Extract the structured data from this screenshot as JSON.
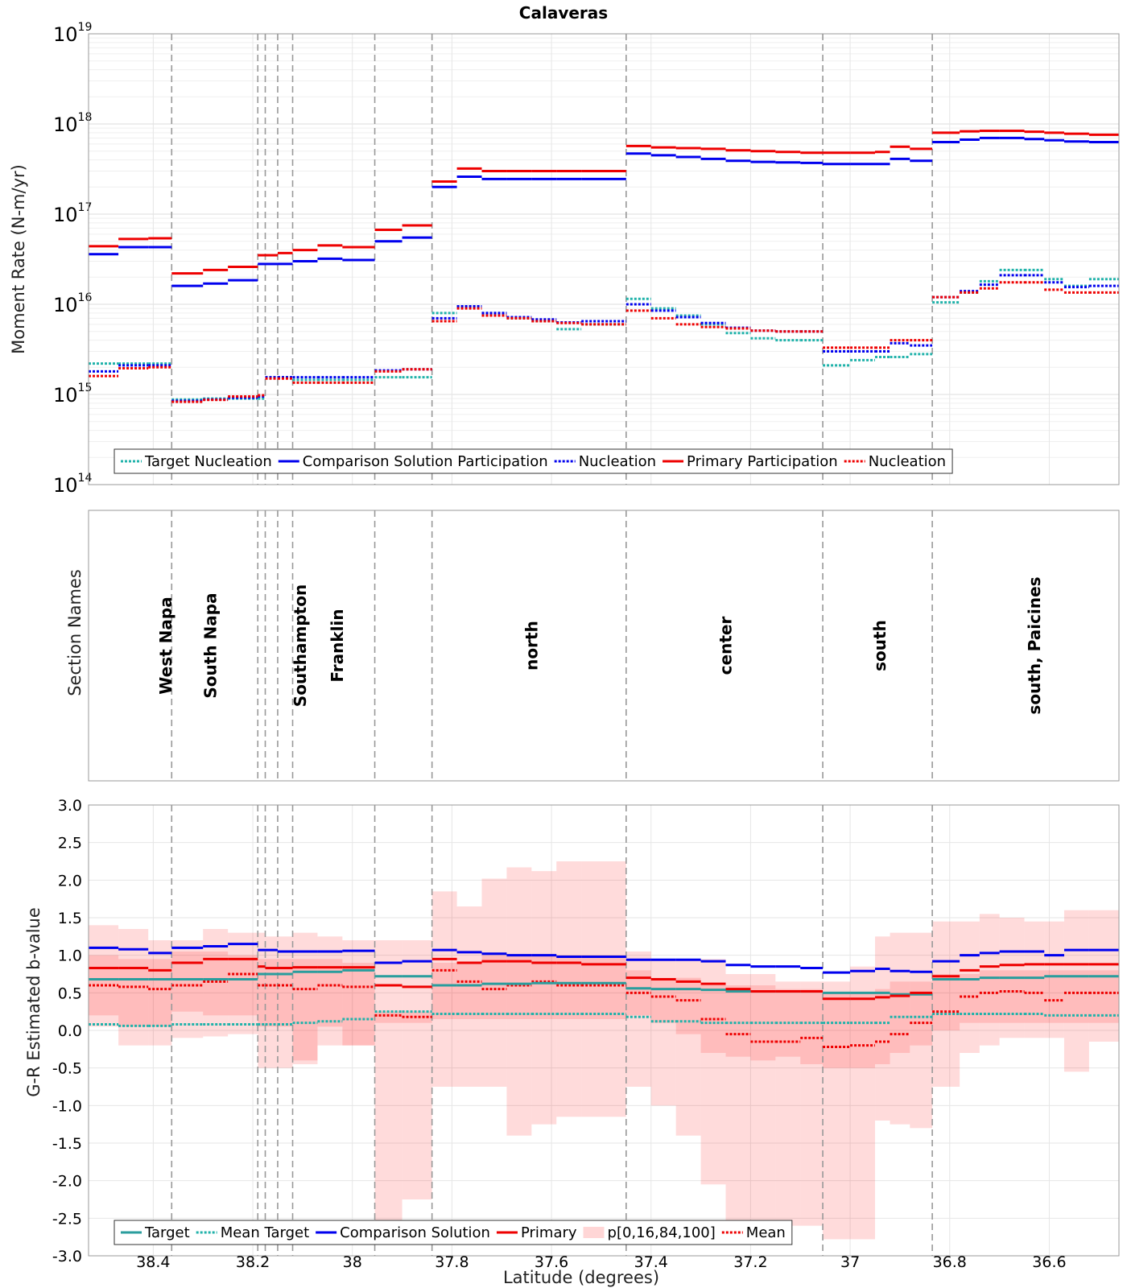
{
  "chart_data": {
    "title": "Calaveras",
    "xlabel": "Latitude (degrees)",
    "xlim": [
      38.53,
      36.46
    ],
    "x_ticks": [
      {
        "v": 38.4,
        "label": "38.4"
      },
      {
        "v": 38.2,
        "label": "38.2"
      },
      {
        "v": 38.0,
        "label": "38"
      },
      {
        "v": 37.8,
        "label": "37.8"
      },
      {
        "v": 37.6,
        "label": "37.6"
      },
      {
        "v": 37.4,
        "label": "37.4"
      },
      {
        "v": 37.2,
        "label": "37.2"
      },
      {
        "v": 37.0,
        "label": "37"
      },
      {
        "v": 36.8,
        "label": "36.8"
      },
      {
        "v": 36.6,
        "label": "36.6"
      }
    ],
    "section_boundaries": [
      38.363,
      38.19,
      38.175,
      38.15,
      38.12,
      37.955,
      37.84,
      37.45,
      37.055,
      36.835
    ],
    "segments": [
      38.53,
      38.47,
      38.41,
      38.363,
      38.3,
      38.25,
      38.19,
      38.175,
      38.15,
      38.12,
      38.07,
      38.02,
      37.955,
      37.9,
      37.84,
      37.79,
      37.74,
      37.69,
      37.64,
      37.59,
      37.54,
      37.45,
      37.4,
      37.35,
      37.3,
      37.25,
      37.2,
      37.15,
      37.1,
      37.055,
      37.0,
      36.95,
      36.92,
      36.88,
      36.835,
      36.78,
      36.74,
      36.7,
      36.65,
      36.61,
      36.57,
      36.52,
      36.46
    ],
    "moment_panel": {
      "type": "line",
      "scale": "log",
      "ylabel": "Moment Rate (N-m/yr)",
      "y_exp_range": [
        14,
        19
      ],
      "y_tick_base": "10",
      "y_tick_exps": [
        "14",
        "15",
        "16",
        "17",
        "18",
        "19"
      ],
      "legend": [
        {
          "label": "Target Nucleation",
          "color": "#20B2AA",
          "dash": "3,2"
        },
        {
          "label": "Comparison Solution Participation",
          "color": "#0000EE",
          "dash": ""
        },
        {
          "label": "Nucleation",
          "color": "#0000EE",
          "dash": "3,2"
        },
        {
          "label": "Primary Participation",
          "color": "#EE0000",
          "dash": ""
        },
        {
          "label": "Nucleation",
          "color": "#EE0000",
          "dash": "3,2"
        }
      ],
      "series": [
        {
          "name": "Target Nucleation",
          "color": "#20B2AA",
          "dash": "3,2",
          "values": [
            2200000000000000.0,
            2200000000000000.0,
            2200000000000000.0,
            880000000000000.0,
            900000000000000.0,
            900000000000000.0,
            900000000000000.0,
            1550000000000000.0,
            1550000000000000.0,
            1450000000000000.0,
            1450000000000000.0,
            1450000000000000.0,
            1550000000000000.0,
            1550000000000000.0,
            8000000000000000.0,
            9500000000000000.0,
            8000000000000000.0,
            7000000000000000.0,
            6500000000000000.0,
            5300000000000000.0,
            6000000000000000.0,
            1.15e+16,
            9000000000000000.0,
            7500000000000000.0,
            6000000000000000.0,
            4800000000000000.0,
            4200000000000000.0,
            4000000000000000.0,
            4000000000000000.0,
            2100000000000000.0,
            2400000000000000.0,
            2600000000000000.0,
            2600000000000000.0,
            2800000000000000.0,
            1.05e+16,
            1.35e+16,
            1.8e+16,
            2.4e+16,
            2.4e+16,
            1.9e+16,
            1.6e+16,
            1.9e+16
          ]
        },
        {
          "name": "Comparison Solution Participation",
          "color": "#0000EE",
          "dash": "",
          "values": [
            3.6e+16,
            4.3e+16,
            4.3e+16,
            1.6e+16,
            1.7e+16,
            1.85e+16,
            2.8e+16,
            2.8e+16,
            2.8e+16,
            3e+16,
            3.2e+16,
            3.1e+16,
            5e+16,
            5.5e+16,
            2e+17,
            2.6e+17,
            2.45e+17,
            2.45e+17,
            2.45e+17,
            2.45e+17,
            2.45e+17,
            4.7e+17,
            4.5e+17,
            4.3e+17,
            4.1e+17,
            3.9e+17,
            3.8e+17,
            3.75e+17,
            3.7e+17,
            3.6e+17,
            3.6e+17,
            3.6e+17,
            4.1e+17,
            3.9e+17,
            6.3e+17,
            6.7e+17,
            7e+17,
            7e+17,
            6.8e+17,
            6.6e+17,
            6.4e+17,
            6.3e+17
          ]
        },
        {
          "name": "Comparison Solution Nucleation",
          "color": "#0000EE",
          "dash": "3,2",
          "values": [
            1800000000000000.0,
            2100000000000000.0,
            2100000000000000.0,
            850000000000000.0,
            880000000000000.0,
            920000000000000.0,
            950000000000000.0,
            1550000000000000.0,
            1550000000000000.0,
            1550000000000000.0,
            1550000000000000.0,
            1550000000000000.0,
            1850000000000000.0,
            1900000000000000.0,
            7000000000000000.0,
            9500000000000000.0,
            8000000000000000.0,
            7200000000000000.0,
            6800000000000000.0,
            6300000000000000.0,
            6500000000000000.0,
            1e+16,
            8500000000000000.0,
            7200000000000000.0,
            6200000000000000.0,
            5500000000000000.0,
            5100000000000000.0,
            5000000000000000.0,
            5000000000000000.0,
            3000000000000000.0,
            3000000000000000.0,
            3000000000000000.0,
            3700000000000000.0,
            3500000000000000.0,
            1.2e+16,
            1.4e+16,
            1.65e+16,
            2.1e+16,
            2.1e+16,
            1.75e+16,
            1.55e+16,
            1.6e+16
          ]
        },
        {
          "name": "Primary Participation",
          "color": "#EE0000",
          "dash": "",
          "values": [
            4.4e+16,
            5.3e+16,
            5.4e+16,
            2.2e+16,
            2.4e+16,
            2.6e+16,
            3.5e+16,
            3.5e+16,
            3.7e+16,
            4e+16,
            4.5e+16,
            4.3e+16,
            6.7e+16,
            7.5e+16,
            2.3e+17,
            3.2e+17,
            3e+17,
            3e+17,
            3e+17,
            3e+17,
            3e+17,
            5.7e+17,
            5.5e+17,
            5.4e+17,
            5.3e+17,
            5.1e+17,
            5e+17,
            4.9e+17,
            4.8e+17,
            4.8e+17,
            4.8e+17,
            4.9e+17,
            5.6e+17,
            5.3e+17,
            8e+17,
            8.3e+17,
            8.4e+17,
            8.4e+17,
            8.2e+17,
            8e+17,
            7.8e+17,
            7.6e+17
          ]
        },
        {
          "name": "Primary Nucleation",
          "color": "#EE0000",
          "dash": "3,2",
          "values": [
            1600000000000000.0,
            1950000000000000.0,
            2000000000000000.0,
            830000000000000.0,
            870000000000000.0,
            950000000000000.0,
            980000000000000.0,
            1500000000000000.0,
            1500000000000000.0,
            1350000000000000.0,
            1350000000000000.0,
            1350000000000000.0,
            1800000000000000.0,
            1900000000000000.0,
            6500000000000000.0,
            9000000000000000.0,
            7500000000000000.0,
            7000000000000000.0,
            6500000000000000.0,
            6200000000000000.0,
            6000000000000000.0,
            8500000000000000.0,
            7000000000000000.0,
            6000000000000000.0,
            5600000000000000.0,
            5400000000000000.0,
            5100000000000000.0,
            5000000000000000.0,
            5000000000000000.0,
            3300000000000000.0,
            3300000000000000.0,
            3300000000000000.0,
            4000000000000000.0,
            4000000000000000.0,
            1.2e+16,
            1.35e+16,
            1.5e+16,
            1.75e+16,
            1.75e+16,
            1.45e+16,
            1.35e+16,
            1.35e+16
          ]
        }
      ]
    },
    "names_panel": {
      "ylabel": "Section Names",
      "labels": [
        {
          "text": "West Napa",
          "lat": 38.375
        },
        {
          "text": "South Napa",
          "lat": 38.285
        },
        {
          "text": "Southampton",
          "lat": 38.105
        },
        {
          "text": "Franklin",
          "lat": 38.03
        },
        {
          "text": "north",
          "lat": 37.64
        },
        {
          "text": "center",
          "lat": 37.25
        },
        {
          "text": "south",
          "lat": 36.94
        },
        {
          "text": "south, Paicines",
          "lat": 36.63
        }
      ]
    },
    "bvalue_panel": {
      "type": "line",
      "ylabel": "G-R Estimated b-value",
      "ylim": [
        -3.0,
        3.0
      ],
      "y_ticks": [
        "3.0",
        "2.5",
        "2.0",
        "1.5",
        "1.0",
        "0.5",
        "0.0",
        "-0.5",
        "-1.0",
        "-1.5",
        "-2.0",
        "-2.5",
        "-3.0"
      ],
      "legend": [
        {
          "label": "Target",
          "color": "#2A9D9D",
          "dash": "",
          "kind": "line"
        },
        {
          "label": "Mean Target",
          "color": "#20B2AA",
          "dash": "3,2",
          "kind": "line"
        },
        {
          "label": "Comparison Solution",
          "color": "#0000EE",
          "dash": "",
          "kind": "line"
        },
        {
          "label": "Primary",
          "color": "#EE0000",
          "dash": "",
          "kind": "line"
        },
        {
          "label": "p[0,16,84,100]",
          "color": "#FFD6D6",
          "dash": "",
          "kind": "box"
        },
        {
          "label": "Mean",
          "color": "#EE0000",
          "dash": "3,2",
          "kind": "line"
        }
      ],
      "band_p0": [
        0.05,
        -0.2,
        -0.2,
        -0.1,
        -0.08,
        -0.05,
        -0.5,
        -0.5,
        -0.5,
        -0.4,
        -0.2,
        -0.2,
        -2.55,
        -2.25,
        -0.75,
        -0.75,
        -0.75,
        -1.4,
        -1.25,
        -1.15,
        -1.15,
        -0.75,
        -1.0,
        -1.4,
        -2.05,
        -2.6,
        -2.6,
        -2.6,
        -2.6,
        -2.78,
        -2.78,
        -1.2,
        -1.25,
        -1.3,
        -0.75,
        -0.3,
        -0.2,
        -0.1,
        -0.1,
        -0.1,
        -0.55,
        -0.15
      ],
      "band_p16": [
        0.2,
        0.05,
        0.05,
        0.25,
        0.2,
        0.2,
        0.05,
        0.05,
        0.05,
        -0.45,
        0.05,
        -0.2,
        0.1,
        0.1,
        0.15,
        0.15,
        0.15,
        0.15,
        0.15,
        0.15,
        0.15,
        0.2,
        0.1,
        -0.05,
        -0.3,
        -0.35,
        -0.4,
        -0.35,
        -0.45,
        -0.5,
        -0.5,
        -0.45,
        -0.3,
        -0.2,
        0.0,
        0.1,
        0.1,
        0.1,
        0.1,
        0.1,
        0.1,
        0.1
      ],
      "band_p84": [
        1.0,
        0.95,
        0.95,
        1.05,
        1.05,
        1.0,
        0.95,
        0.95,
        0.95,
        0.95,
        0.95,
        0.9,
        0.25,
        0.25,
        0.9,
        0.9,
        1.0,
        1.0,
        1.0,
        1.0,
        1.0,
        0.8,
        0.7,
        0.7,
        0.6,
        0.6,
        0.6,
        0.55,
        0.55,
        0.5,
        0.5,
        0.55,
        0.65,
        0.65,
        0.75,
        0.75,
        0.8,
        0.8,
        0.8,
        0.8,
        0.8,
        0.8
      ],
      "band_p100": [
        1.4,
        1.35,
        1.2,
        1.2,
        1.35,
        1.3,
        1.3,
        1.25,
        1.25,
        1.3,
        1.25,
        1.2,
        1.2,
        1.2,
        1.85,
        1.65,
        2.02,
        2.17,
        2.12,
        2.25,
        2.25,
        1.05,
        0.95,
        0.95,
        0.95,
        0.75,
        0.75,
        0.65,
        0.65,
        0.65,
        0.85,
        1.25,
        1.3,
        1.3,
        1.45,
        1.45,
        1.55,
        1.5,
        1.45,
        1.45,
        1.6,
        1.6
      ],
      "target": [
        0.68,
        0.68,
        0.68,
        0.68,
        0.68,
        0.68,
        0.75,
        0.75,
        0.75,
        0.78,
        0.78,
        0.8,
        0.72,
        0.72,
        0.6,
        0.6,
        0.62,
        0.62,
        0.63,
        0.63,
        0.63,
        0.56,
        0.55,
        0.55,
        0.54,
        0.52,
        0.52,
        0.52,
        0.52,
        0.5,
        0.5,
        0.5,
        0.48,
        0.48,
        0.68,
        0.68,
        0.7,
        0.7,
        0.7,
        0.72,
        0.72,
        0.72
      ],
      "mean_target": [
        0.08,
        0.06,
        0.06,
        0.08,
        0.08,
        0.08,
        0.08,
        0.08,
        0.08,
        0.1,
        0.12,
        0.15,
        0.25,
        0.25,
        0.22,
        0.22,
        0.22,
        0.22,
        0.22,
        0.22,
        0.22,
        0.18,
        0.12,
        0.12,
        0.1,
        0.1,
        0.1,
        0.1,
        0.1,
        0.1,
        0.1,
        0.1,
        0.18,
        0.18,
        0.22,
        0.22,
        0.22,
        0.22,
        0.22,
        0.2,
        0.2,
        0.2
      ],
      "comparison": [
        1.1,
        1.08,
        1.03,
        1.1,
        1.12,
        1.15,
        1.07,
        1.07,
        1.05,
        1.05,
        1.05,
        1.06,
        0.9,
        0.92,
        1.07,
        1.04,
        1.02,
        1.0,
        1.0,
        0.98,
        0.98,
        0.94,
        0.94,
        0.94,
        0.92,
        0.87,
        0.85,
        0.85,
        0.83,
        0.77,
        0.79,
        0.82,
        0.79,
        0.78,
        0.92,
        1.0,
        1.03,
        1.05,
        1.05,
        1.0,
        1.07,
        1.07
      ],
      "primary": [
        0.83,
        0.83,
        0.8,
        0.9,
        0.95,
        0.95,
        0.85,
        0.83,
        0.83,
        0.84,
        0.84,
        0.84,
        0.6,
        0.58,
        0.95,
        0.9,
        0.92,
        0.92,
        0.9,
        0.9,
        0.88,
        0.7,
        0.68,
        0.65,
        0.62,
        0.55,
        0.52,
        0.52,
        0.52,
        0.42,
        0.42,
        0.44,
        0.46,
        0.5,
        0.72,
        0.8,
        0.85,
        0.87,
        0.88,
        0.88,
        0.88,
        0.88
      ],
      "mean": [
        0.6,
        0.58,
        0.55,
        0.6,
        0.65,
        0.75,
        0.6,
        0.6,
        0.6,
        0.55,
        0.6,
        0.58,
        0.2,
        0.18,
        0.8,
        0.65,
        0.55,
        0.6,
        0.65,
        0.6,
        0.6,
        0.5,
        0.45,
        0.4,
        0.15,
        -0.05,
        -0.15,
        -0.15,
        -0.1,
        -0.22,
        -0.2,
        -0.15,
        -0.05,
        0.1,
        0.25,
        0.45,
        0.5,
        0.52,
        0.5,
        0.4,
        0.5,
        0.5
      ]
    }
  }
}
